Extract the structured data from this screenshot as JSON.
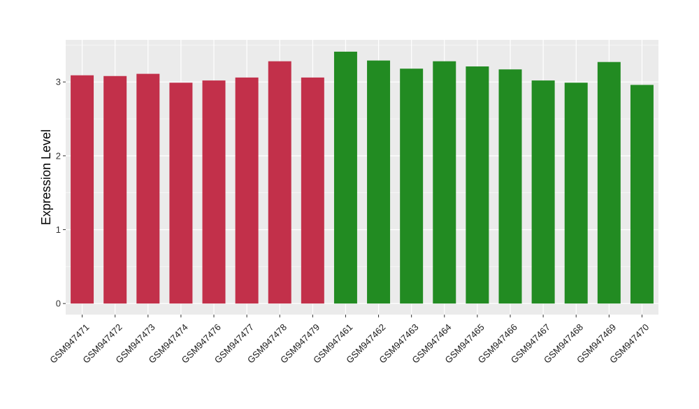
{
  "chart_data": {
    "type": "bar",
    "title": "",
    "xlabel": "",
    "ylabel": "Expression Level",
    "ylim": [
      -0.15,
      3.57
    ],
    "yticks": [
      0,
      1,
      2,
      3
    ],
    "grid": true,
    "categories": [
      "GSM947471",
      "GSM947472",
      "GSM947473",
      "GSM947474",
      "GSM947476",
      "GSM947477",
      "GSM947478",
      "GSM947479",
      "GSM947461",
      "GSM947462",
      "GSM947463",
      "GSM947464",
      "GSM947465",
      "GSM947466",
      "GSM947467",
      "GSM947468",
      "GSM947469",
      "GSM947470"
    ],
    "values": [
      3.09,
      3.08,
      3.11,
      2.99,
      3.02,
      3.06,
      3.28,
      3.06,
      3.41,
      3.29,
      3.18,
      3.28,
      3.21,
      3.17,
      3.02,
      2.99,
      3.27,
      2.96
    ],
    "group_colors": [
      "#C2304A",
      "#C2304A",
      "#C2304A",
      "#C2304A",
      "#C2304A",
      "#C2304A",
      "#C2304A",
      "#C2304A",
      "#228B22",
      "#228B22",
      "#228B22",
      "#228B22",
      "#228B22",
      "#228B22",
      "#228B22",
      "#228B22",
      "#228B22",
      "#228B22"
    ],
    "panel_background": "#EBEBEB",
    "grid_color": "#FFFFFF"
  }
}
